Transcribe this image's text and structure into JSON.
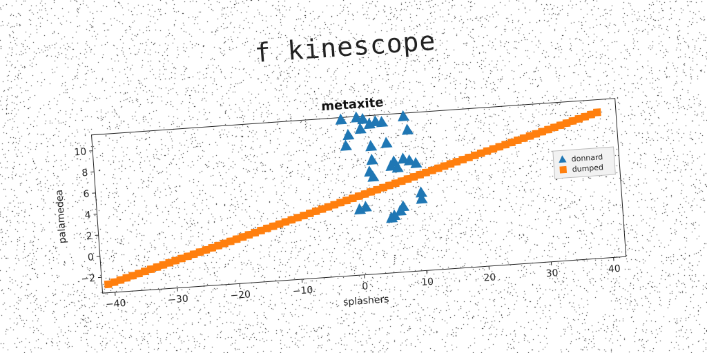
{
  "page": {
    "title": "f kinescope"
  },
  "chart_data": {
    "type": "scatter",
    "title": "metaxite",
    "xlabel": "splashers",
    "ylabel": "palamedea",
    "xlim": [
      -42,
      42
    ],
    "ylim": [
      -3.5,
      11.5
    ],
    "xticks": [
      -40,
      -30,
      -20,
      -10,
      0,
      10,
      20,
      30,
      40
    ],
    "yticks": [
      -2,
      0,
      2,
      4,
      6,
      8,
      10
    ],
    "xtick_labels": [
      "−40",
      "−30",
      "−20",
      "−10",
      "0",
      "10",
      "20",
      "30",
      "40"
    ],
    "ytick_labels": [
      "−2",
      "0",
      "2",
      "4",
      "6",
      "8",
      "10"
    ],
    "grid": false,
    "legend_position": "right",
    "series": [
      {
        "name": "donnard",
        "marker": "triangle",
        "color": "#1f77b4",
        "points": [
          [
            -2,
            11.3
          ],
          [
            0.5,
            11.4
          ],
          [
            1.5,
            11.2
          ],
          [
            2.5,
            10.7
          ],
          [
            3.5,
            10.9
          ],
          [
            4.5,
            10.8
          ],
          [
            8,
            11.2
          ],
          [
            1,
            10.3
          ],
          [
            -1,
            9.8
          ],
          [
            8.5,
            9.9
          ],
          [
            -1.5,
            8.8
          ],
          [
            5,
            8.8
          ],
          [
            2.5,
            8.6
          ],
          [
            2.5,
            7.3
          ],
          [
            6,
            7.0
          ],
          [
            7.5,
            7.2
          ],
          [
            8.5,
            7.0
          ],
          [
            9.5,
            6.7
          ],
          [
            5.5,
            6.6
          ],
          [
            6.5,
            6.4
          ],
          [
            2,
            6.2
          ],
          [
            2.5,
            5.7
          ],
          [
            10,
            3.9
          ],
          [
            10,
            3.3
          ],
          [
            1,
            2.9
          ],
          [
            0,
            2.7
          ],
          [
            7,
            2.7
          ],
          [
            6.5,
            2.3
          ],
          [
            5.5,
            1.9
          ],
          [
            5,
            1.7
          ]
        ]
      },
      {
        "name": "dumped",
        "marker": "square",
        "color": "#ff7f0e",
        "line": {
          "x_start": -41,
          "x_end": 39,
          "step": 1,
          "slope": 0.1625,
          "intercept": 3.9625
        }
      }
    ]
  },
  "colors": {
    "axis": "#222222",
    "background": "#ffffff",
    "noise": "#000000"
  }
}
